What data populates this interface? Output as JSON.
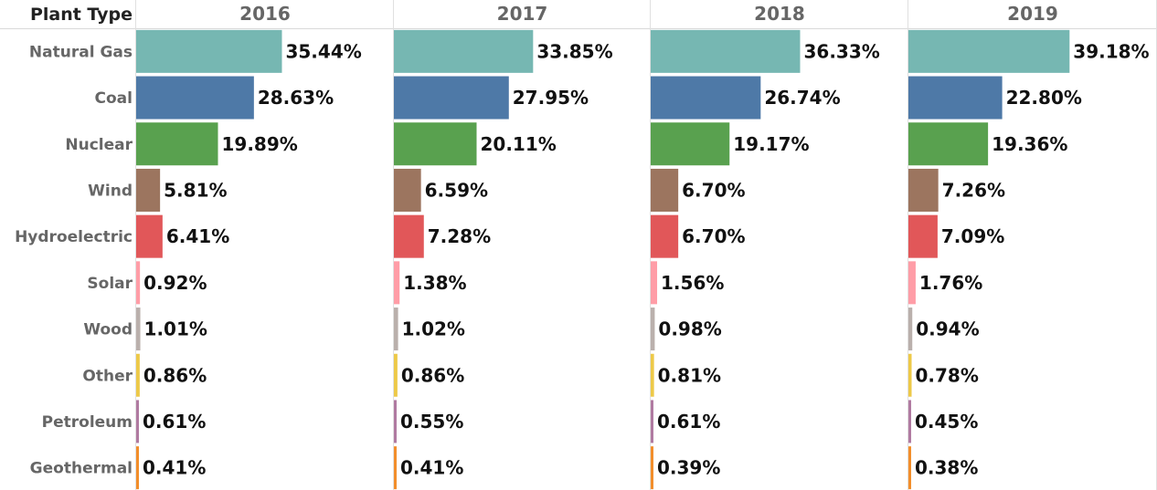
{
  "chart_data": {
    "type": "bar",
    "orientation": "horizontal",
    "row_header": "Plant Type",
    "categories": [
      "Natural Gas",
      "Coal",
      "Nuclear",
      "Wind",
      "Hydroelectric",
      "Solar",
      "Wood",
      "Other",
      "Petroleum",
      "Geothermal"
    ],
    "category_colors": [
      "#76b7b2",
      "#4e79a7",
      "#59a14f",
      "#9c755f",
      "#e15759",
      "#ff9da7",
      "#bab0ac",
      "#edc948",
      "#b07aa1",
      "#f28e2b"
    ],
    "value_format": "percent_2dp",
    "series": [
      {
        "name": "2016",
        "values": [
          35.44,
          28.63,
          19.89,
          5.81,
          6.41,
          0.92,
          1.01,
          0.86,
          0.61,
          0.41
        ],
        "labels": [
          "35.44%",
          "28.63%",
          "19.89%",
          "5.81%",
          "6.41%",
          "0.92%",
          "1.01%",
          "0.86%",
          "0.61%",
          "0.41%"
        ]
      },
      {
        "name": "2017",
        "values": [
          33.85,
          27.95,
          20.11,
          6.59,
          7.28,
          1.38,
          1.02,
          0.86,
          0.55,
          0.41
        ],
        "labels": [
          "33.85%",
          "27.95%",
          "20.11%",
          "6.59%",
          "7.28%",
          "1.38%",
          "1.02%",
          "0.86%",
          "0.55%",
          "0.41%"
        ]
      },
      {
        "name": "2018",
        "values": [
          36.33,
          26.74,
          19.17,
          6.7,
          6.7,
          1.56,
          0.98,
          0.81,
          0.61,
          0.39
        ],
        "labels": [
          "36.33%",
          "26.74%",
          "19.17%",
          "6.70%",
          "6.70%",
          "1.56%",
          "0.98%",
          "0.81%",
          "0.61%",
          "0.39%"
        ]
      },
      {
        "name": "2019",
        "values": [
          39.18,
          22.8,
          19.36,
          7.26,
          7.09,
          1.76,
          0.94,
          0.78,
          0.45,
          0.38
        ],
        "labels": [
          "39.18%",
          "22.80%",
          "19.36%",
          "7.26%",
          "7.09%",
          "1.76%",
          "0.94%",
          "0.78%",
          "0.45%",
          "0.38%"
        ]
      }
    ],
    "xlim": [
      0,
      40
    ],
    "grid": false,
    "legend": "none"
  }
}
